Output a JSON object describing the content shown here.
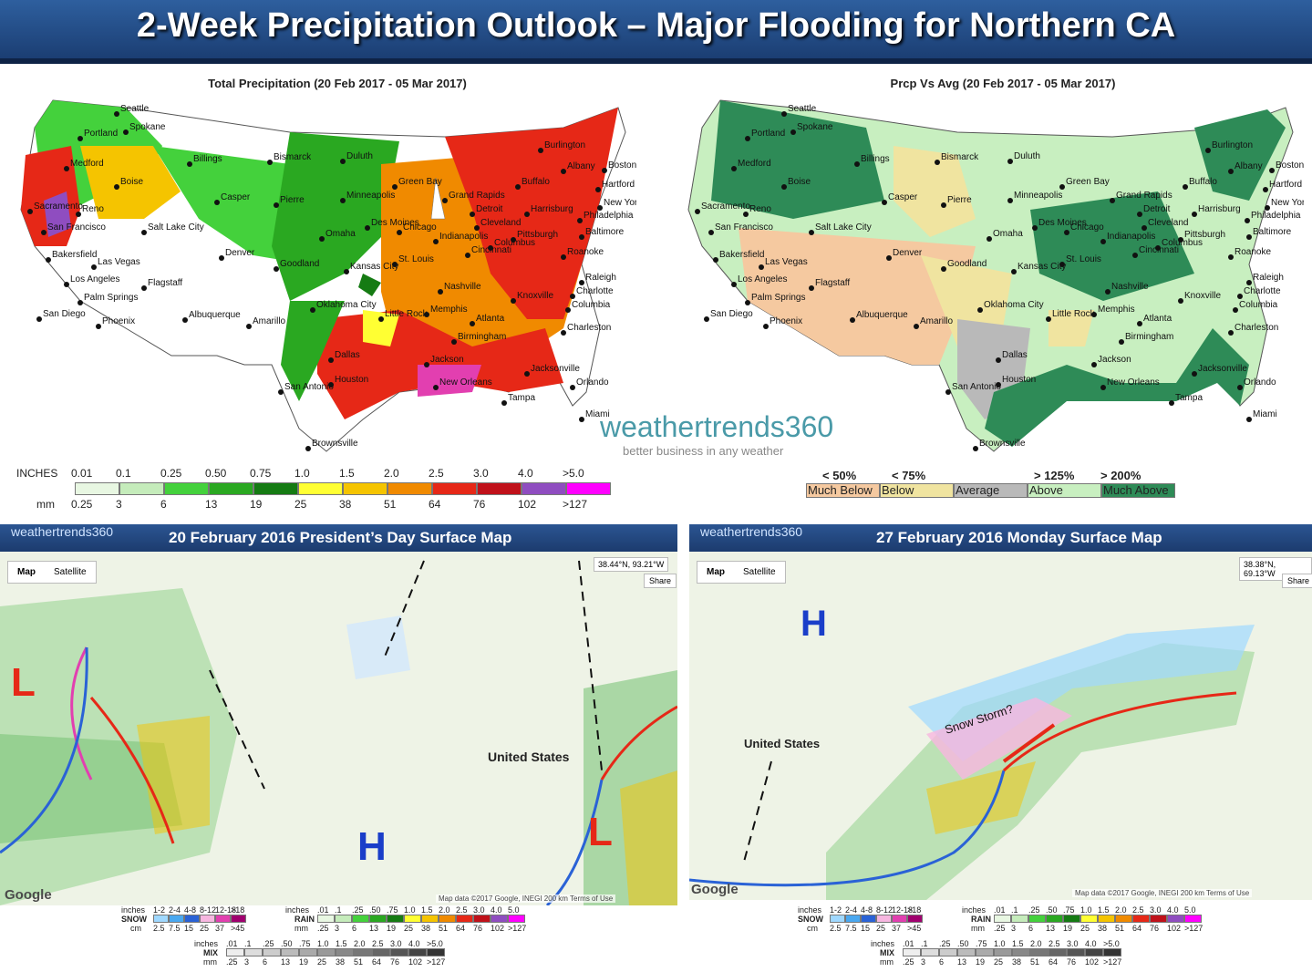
{
  "banner": {
    "title": "2-Week Precipitation Outlook – Major Flooding for Northern CA"
  },
  "left_map": {
    "title": "Total Precipitation (20 Feb 2017 - 05 Mar 2017)",
    "legend": {
      "inches_label": "INCHES",
      "mm_label": "mm",
      "inches": [
        "0.01",
        "0.1",
        "0.25",
        "0.50",
        "0.75",
        "1.0",
        "1.5",
        "2.0",
        "2.5",
        "3.0",
        "4.0",
        ">5.0"
      ],
      "mm": [
        "0.25",
        "3",
        "6",
        "13",
        "19",
        "25",
        "38",
        "51",
        "64",
        "76",
        "102",
        ">127"
      ],
      "colors": [
        "#e8f7e2",
        "#c5ecbb",
        "#44d13c",
        "#2aa821",
        "#157b13",
        "#ffff33",
        "#f5c400",
        "#f08a00",
        "#e62817",
        "#c0111a",
        "#8f4dc0",
        "#ff00ff"
      ]
    }
  },
  "right_map": {
    "title": "Prcp Vs Avg (20 Feb 2017 - 05 Mar 2017)",
    "legend": {
      "thresholds": [
        "< 50%",
        "< 75%",
        "> 125%",
        "> 200%"
      ],
      "labels": [
        "Much Below",
        "Below",
        "Average",
        "Above",
        "Much Above"
      ],
      "colors": [
        "#f5c9a0",
        "#f0e4a0",
        "#b9b9b9",
        "#c8efc0",
        "#2e8b57"
      ]
    }
  },
  "cities": [
    "Seattle",
    "Portland",
    "Spokane",
    "Medford",
    "Boise",
    "Sacramento",
    "Reno",
    "San Francisco",
    "Bakersfield",
    "Las Vegas",
    "Salt Lake City",
    "Los Angeles",
    "Palm Springs",
    "San Diego",
    "Phoenix",
    "Flagstaff",
    "Albuquerque",
    "Billings",
    "Casper",
    "Denver",
    "Bismarck",
    "Pierre",
    "Goodland",
    "Amarillo",
    "Duluth",
    "Minneapolis",
    "Omaha",
    "Kansas City",
    "Oklahoma City",
    "Dallas",
    "San Antonio",
    "Houston",
    "Brownsville",
    "Des Moines",
    "Green Bay",
    "Chicago",
    "St. Louis",
    "Little Rock",
    "Memphis",
    "Jackson",
    "New Orleans",
    "Nashville",
    "Birmingham",
    "Atlanta",
    "Grand Rapids",
    "Detroit",
    "Cleveland",
    "Indianapolis",
    "Columbus",
    "Cincinnati",
    "Pittsburgh",
    "Knoxville",
    "Charlotte",
    "Columbia",
    "Charleston",
    "Jacksonville",
    "Orlando",
    "Tampa",
    "Miami",
    "Raleigh",
    "Roanoke",
    "Baltimore",
    "Philadelphia",
    "Harrisburg",
    "New York",
    "Hartford",
    "Boston",
    "Albany",
    "Buffalo",
    "Burlington"
  ],
  "brand": {
    "name": "weathertrends360",
    "tagline": "better business in any weather"
  },
  "panel_left": {
    "brand": "weathertrends360",
    "title": "20 February 2016 President’s Day Surface Map",
    "map_btn": "Map",
    "sat_btn": "Satellite",
    "coords": "38.44°N, 93.21°W",
    "share": "Share",
    "country_label": "United States",
    "google": "Google",
    "mapdata": "Map data ©2017 Google, INEGI  200 km  Terms of Use"
  },
  "panel_right": {
    "brand": "weathertrends360",
    "title": "27 February 2016 Monday Surface Map",
    "map_btn": "Map",
    "sat_btn": "Satellite",
    "coords": "38.38°N, 69.13°W",
    "share": "Share",
    "country_label": "United States",
    "annotation": "Snow Storm?",
    "google": "Google",
    "mapdata": "Map data ©2017 Google, INEGI  200 km  Terms of Use"
  },
  "surface_legend": {
    "snow_inches_label": "inches",
    "snow_inches": [
      "1-2",
      "2-4",
      "4-8",
      "8-12",
      "12-18",
      ">18"
    ],
    "snow_label": "SNOW",
    "snow_cm_label": "cm",
    "snow_cm": [
      "2.5",
      "7.5",
      "15",
      "25",
      "37",
      ">45"
    ],
    "rain_inches_label": "inches",
    "rain_inches": [
      ".01",
      ".1",
      ".25",
      ".50",
      ".75",
      "1.0",
      "1.5",
      "2.0",
      "2.5",
      "3.0",
      "4.0",
      "5.0"
    ],
    "rain_label": "RAIN",
    "rain_mm_label": "mm",
    "rain_mm": [
      ".25",
      "3",
      "6",
      "13",
      "19",
      "25",
      "38",
      "51",
      "64",
      "76",
      "102",
      ">127"
    ],
    "mix_inches_label": "inches",
    "mix_inches": [
      ".01",
      ".1",
      ".25",
      ".50",
      ".75",
      "1.0",
      "1.5",
      "2.0",
      "2.5",
      "3.0",
      "4.0",
      ">5.0"
    ],
    "mix_label": "MIX",
    "mix_mm_label": "mm",
    "mix_mm": [
      ".25",
      "3",
      "6",
      "13",
      "19",
      "25",
      "38",
      "51",
      "64",
      "76",
      "102",
      ">127"
    ],
    "snow_colors": [
      "#9fd8ff",
      "#4aa8f0",
      "#2a62d6",
      "#f7b6e0",
      "#e23fb0",
      "#a0006f"
    ],
    "rain_colors": [
      "#e8f7e2",
      "#c5ecbb",
      "#44d13c",
      "#2aa821",
      "#157b13",
      "#ffff33",
      "#f5c400",
      "#f08a00",
      "#e62817",
      "#c0111a",
      "#8f4dc0",
      "#ff00ff"
    ],
    "mix_colors": [
      "#eeeeee",
      "#dddddd",
      "#cccccc",
      "#bbbbbb",
      "#aaaaaa",
      "#999999",
      "#888888",
      "#777777",
      "#666666",
      "#555555",
      "#444444",
      "#333333"
    ]
  },
  "front_letters": {
    "low": "L",
    "high": "H"
  }
}
